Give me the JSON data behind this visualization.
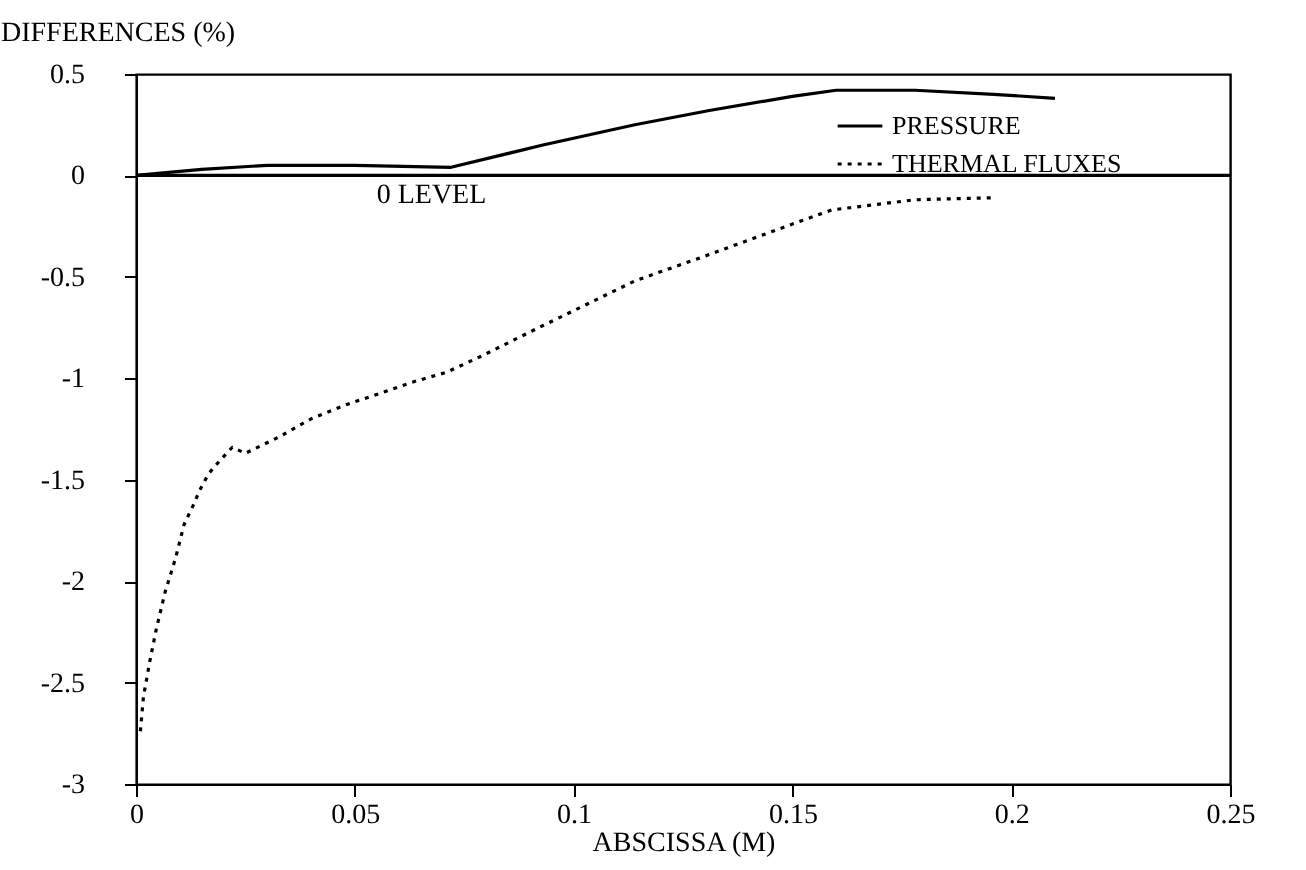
{
  "chart_data": {
    "type": "line",
    "xlabel": "ABSCISSA (M)",
    "ylabel": "DIFFERENCES (%)",
    "xlim": [
      0,
      0.25
    ],
    "xticks": [
      0,
      0.05,
      0.1,
      0.15,
      0.2,
      0.25
    ],
    "ylim": [
      -3,
      0.5
    ],
    "yticks": [
      -3,
      -2.5,
      -2,
      -1.5,
      -1,
      -0.5,
      0,
      0.5
    ],
    "grid": false,
    "legend": "top right",
    "marker": "none",
    "ref_lines": [
      {
        "axis": "y",
        "value": 0,
        "label": "0 LEVEL",
        "color": "#000000"
      }
    ],
    "series": [
      {
        "name": "PRESSURE",
        "color": "#000000",
        "line_style": "solid",
        "x": [
          0,
          0.015,
          0.03,
          0.05,
          0.072,
          0.093,
          0.114,
          0.131,
          0.15,
          0.16,
          0.178,
          0.196,
          0.21
        ],
        "values": [
          0,
          0.03,
          0.05,
          0.05,
          0.04,
          0.15,
          0.25,
          0.32,
          0.39,
          0.42,
          0.42,
          0.4,
          0.38
        ]
      },
      {
        "name": "THERMAL FLUXES",
        "color": "#000000",
        "line_style": "dotted",
        "x": [
          0.001,
          0.0017,
          0.0032,
          0.0047,
          0.0067,
          0.009,
          0.011,
          0.013,
          0.0146,
          0.0166,
          0.019,
          0.022,
          0.025,
          0.0326,
          0.04,
          0.048,
          0.055,
          0.063,
          0.071,
          0.079,
          0.093,
          0.114,
          0.131,
          0.15,
          0.159,
          0.178,
          0.196
        ],
        "values": [
          -2.74,
          -2.57,
          -2.39,
          -2.23,
          -2.05,
          -1.89,
          -1.72,
          -1.63,
          -1.55,
          -1.47,
          -1.41,
          -1.34,
          -1.37,
          -1.29,
          -1.2,
          -1.13,
          -1.08,
          -1.02,
          -0.97,
          -0.89,
          -0.74,
          -0.52,
          -0.39,
          -0.24,
          -0.17,
          -0.12,
          -0.11
        ]
      }
    ]
  }
}
